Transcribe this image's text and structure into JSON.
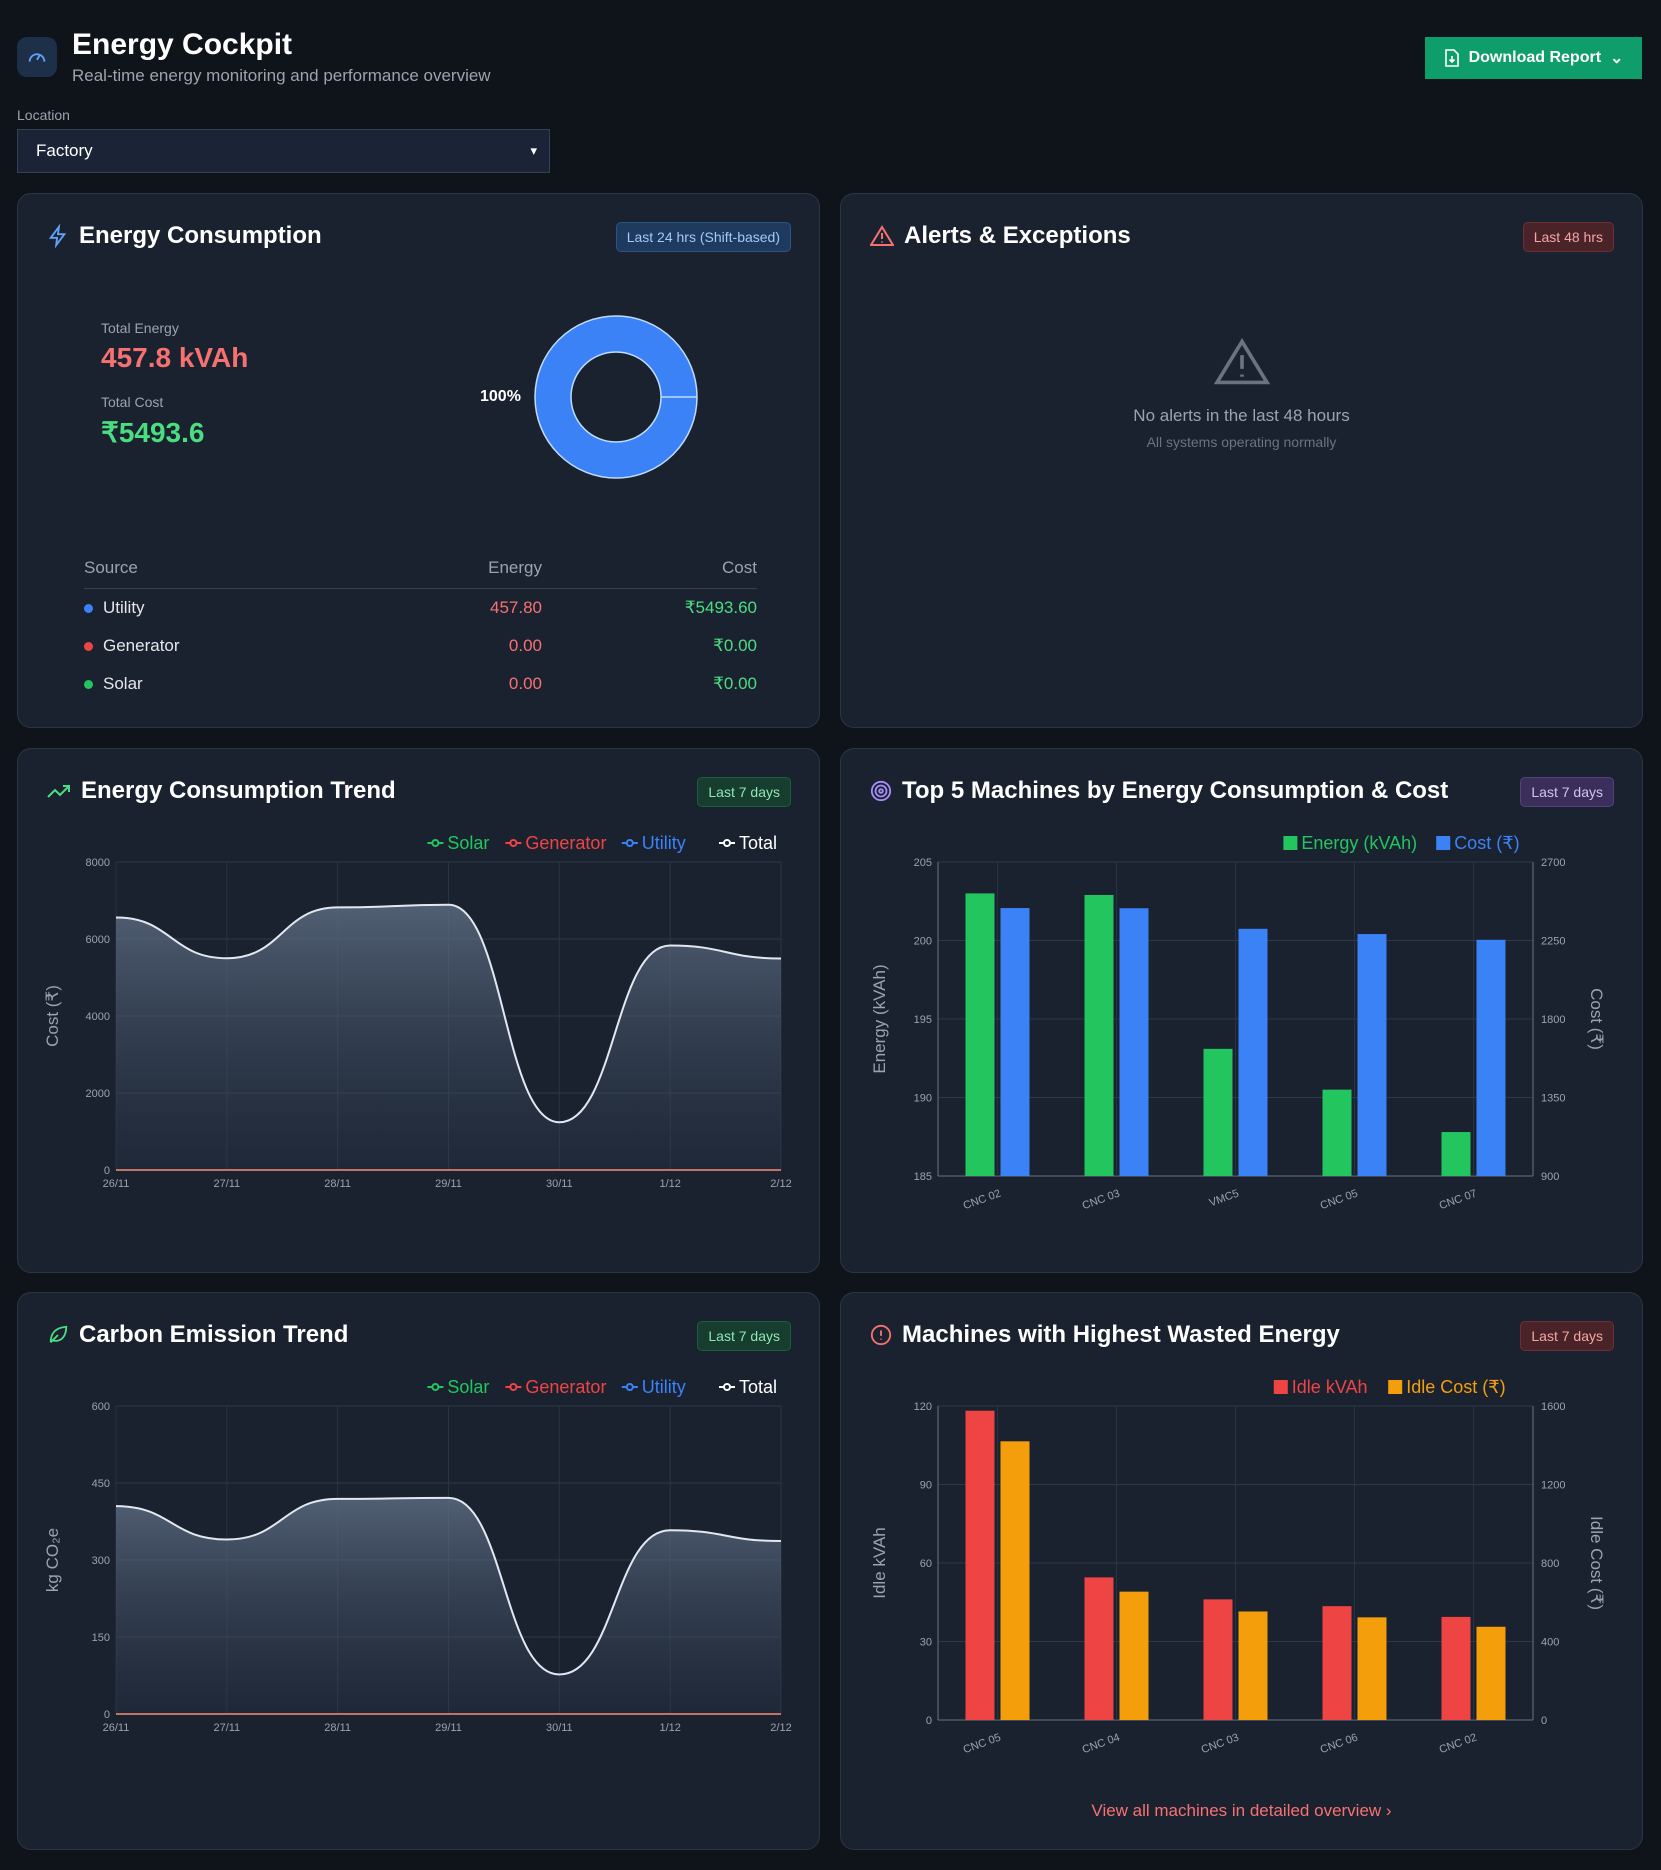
{
  "header": {
    "title": "Energy Cockpit",
    "subtitle": "Real-time energy monitoring and performance overview",
    "download_label": "Download Report"
  },
  "location": {
    "label": "Location",
    "value": "Factory"
  },
  "consumption": {
    "title": "Energy Consumption",
    "badge": "Last 24 hrs (Shift-based)",
    "total_energy_label": "Total Energy",
    "total_energy": "457.8 kVAh",
    "total_cost_label": "Total Cost",
    "total_cost": "₹5493.6",
    "donut_label": "100%",
    "donut_share": {
      "Utility": 100,
      "Generator": 0,
      "Solar": 0
    },
    "columns": [
      "Source",
      "Energy",
      "Cost"
    ],
    "rows": [
      {
        "source": "Utility",
        "energy": "457.80",
        "cost": "₹5493.60",
        "color": "#3b82f6"
      },
      {
        "source": "Generator",
        "energy": "0.00",
        "cost": "₹0.00",
        "color": "#ef4444"
      },
      {
        "source": "Solar",
        "energy": "0.00",
        "cost": "₹0.00",
        "color": "#22c55e"
      }
    ]
  },
  "alerts": {
    "title": "Alerts & Exceptions",
    "badge": "Last 48 hrs",
    "empty_title": "No alerts in the last 48 hours",
    "empty_sub": "All systems operating normally"
  },
  "trend": {
    "title": "Energy Consumption Trend",
    "badge": "Last 7 days"
  },
  "top5": {
    "title": "Top 5 Machines by Energy Consumption & Cost",
    "badge": "Last 7 days"
  },
  "carbon": {
    "title": "Carbon Emission Trend",
    "badge": "Last 7 days"
  },
  "wasted": {
    "title": "Machines with Highest Wasted Energy",
    "badge": "Last 7 days",
    "link": "View all machines in detailed overview"
  },
  "chart_data": [
    {
      "type": "area",
      "ylabel": "Cost (₹)",
      "ylim": [
        0,
        8000
      ],
      "yticks": [
        0,
        2000,
        4000,
        6000,
        8000
      ],
      "x": [
        "26/11",
        "27/11",
        "28/11",
        "29/11",
        "30/11",
        "1/12",
        "2/12"
      ],
      "legend": "top-right",
      "grid": true,
      "series": [
        {
          "name": "Solar",
          "color": "#22c55e",
          "values": [
            0,
            0,
            0,
            0,
            0,
            0,
            0
          ]
        },
        {
          "name": "Generator",
          "color": "#ef4444",
          "values": [
            0,
            0,
            0,
            0,
            0,
            0,
            0
          ]
        },
        {
          "name": "Utility",
          "color": "#3b82f6",
          "values": [
            6560,
            5500,
            6820,
            6890,
            1240,
            5830,
            5495
          ]
        },
        {
          "name": "Total",
          "color": "#ffffff",
          "values": [
            6560,
            5500,
            6820,
            6890,
            1240,
            5830,
            5495
          ]
        }
      ]
    },
    {
      "type": "bar",
      "ylabel": "Energy (kVAh)",
      "y2label": "Cost (₹)",
      "ylim": [
        185,
        205
      ],
      "yticks": [
        185,
        190,
        195,
        200,
        205
      ],
      "y2lim": [
        900,
        2700
      ],
      "y2ticks": [
        900,
        1350,
        1800,
        2250,
        2700
      ],
      "categories": [
        "CNC 02",
        "CNC 03",
        "VMC5",
        "CNC 05",
        "CNC 07"
      ],
      "legend": "top-right",
      "grid": true,
      "series": [
        {
          "name": "Energy (kVAh)",
          "color": "#22c55e",
          "axis": "left",
          "values": [
            203.0,
            202.9,
            193.1,
            190.5,
            187.8
          ]
        },
        {
          "name": "Cost (₹)",
          "color": "#3b82f6",
          "axis": "right",
          "values": [
            2436,
            2435,
            2317,
            2287,
            2254
          ]
        }
      ]
    },
    {
      "type": "area",
      "ylabel": "kg CO₂e",
      "ylim": [
        0,
        600
      ],
      "yticks": [
        0,
        150,
        300,
        450,
        600
      ],
      "x": [
        "26/11",
        "27/11",
        "28/11",
        "29/11",
        "30/11",
        "1/12",
        "2/12"
      ],
      "legend": "top-right",
      "grid": true,
      "series": [
        {
          "name": "Solar",
          "color": "#22c55e",
          "values": [
            0,
            0,
            0,
            0,
            0,
            0,
            0
          ]
        },
        {
          "name": "Generator",
          "color": "#ef4444",
          "values": [
            0,
            0,
            0,
            0,
            0,
            0,
            0
          ]
        },
        {
          "name": "Utility",
          "color": "#3b82f6",
          "values": [
            405,
            340,
            419,
            421,
            77,
            358,
            337
          ]
        },
        {
          "name": "Total",
          "color": "#ffffff",
          "values": [
            405,
            340,
            419,
            421,
            77,
            358,
            337
          ]
        }
      ]
    },
    {
      "type": "bar",
      "ylabel": "Idle kVAh",
      "y2label": "Idle Cost (₹)",
      "ylim": [
        0,
        120
      ],
      "yticks": [
        0,
        30,
        60,
        90,
        120
      ],
      "y2lim": [
        0,
        1600
      ],
      "y2ticks": [
        0,
        400,
        800,
        1200,
        1600
      ],
      "categories": [
        "CNC 05",
        "CNC 04",
        "CNC 03",
        "CNC 06",
        "CNC 02"
      ],
      "legend": "top-right",
      "grid": true,
      "series": [
        {
          "name": "Idle kVAh",
          "color": "#ef4444",
          "axis": "left",
          "values": [
            118.2,
            54.5,
            46.1,
            43.5,
            39.4
          ]
        },
        {
          "name": "Idle Cost (₹)",
          "color": "#f59e0b",
          "axis": "right",
          "values": [
            1420,
            654,
            553,
            523,
            475
          ]
        }
      ]
    }
  ]
}
